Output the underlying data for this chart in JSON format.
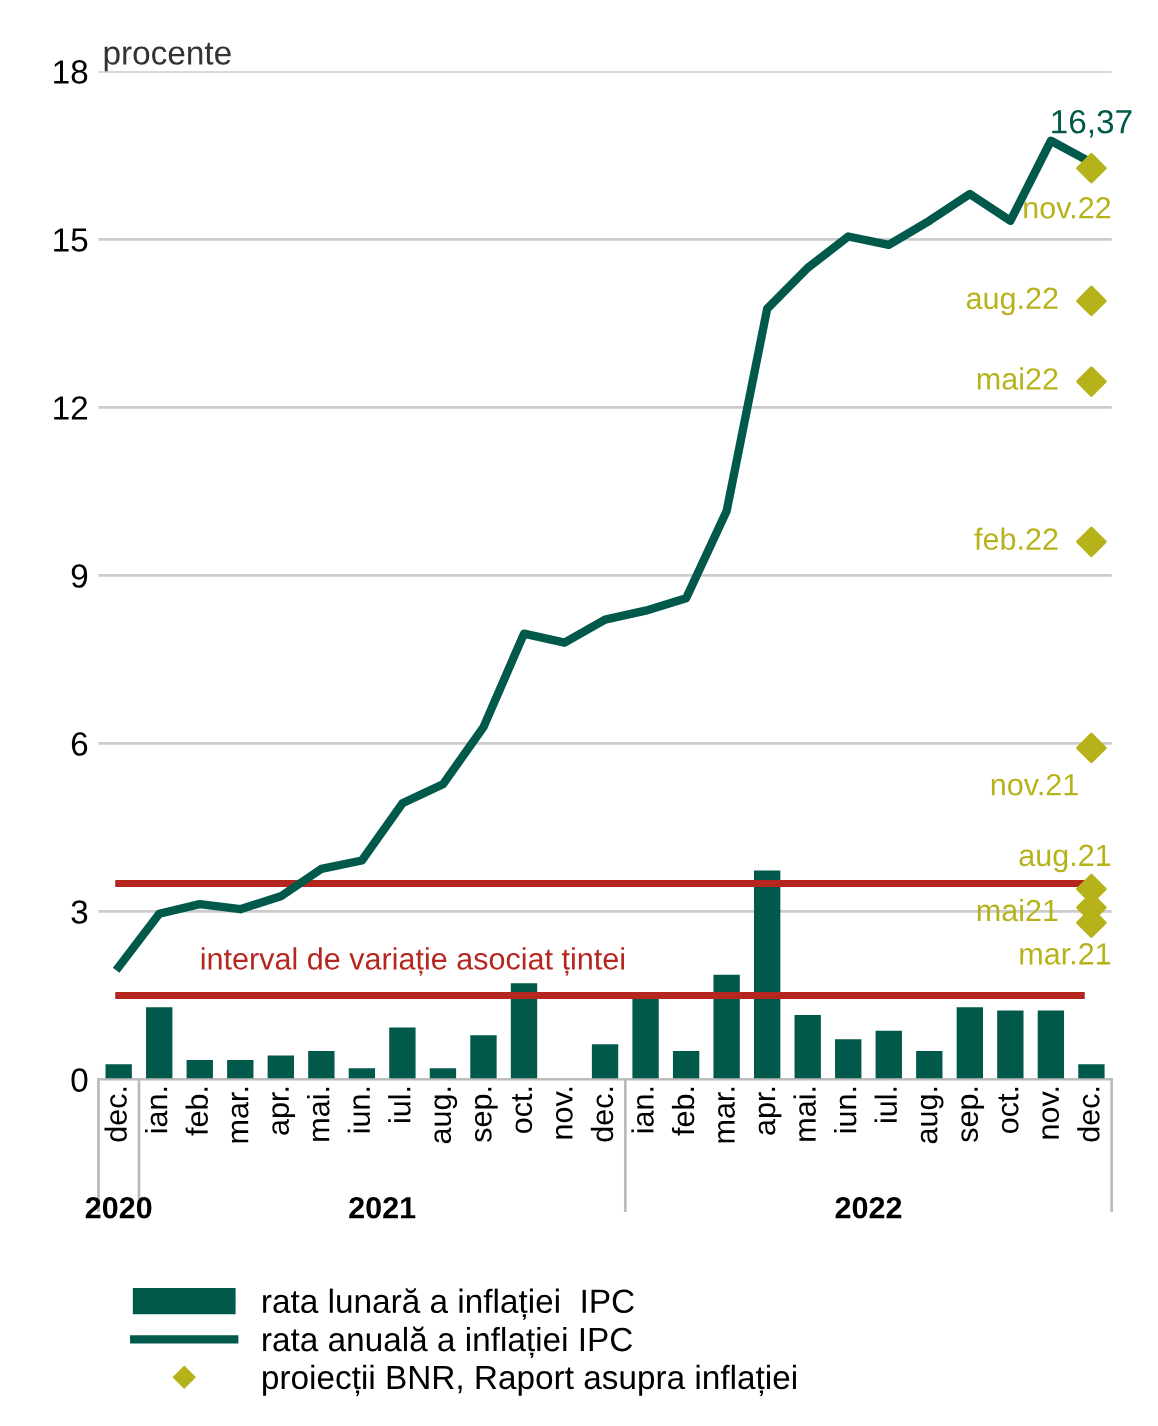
{
  "chart_data": {
    "type": "bar",
    "ylabel": "procente",
    "categories": [
      "dec.",
      "ian.",
      "feb.",
      "mar.",
      "apr.",
      "mai.",
      "iun.",
      "iul.",
      "aug.",
      "sep.",
      "oct.",
      "nov.",
      "dec.",
      "ian.",
      "feb.",
      "mar.",
      "apr.",
      "mai.",
      "iun.",
      "iul.",
      "aug.",
      "sep.",
      "oct.",
      "nov.",
      "dec."
    ],
    "ylim": [
      0,
      18
    ],
    "yticks": [
      0,
      3,
      6,
      9,
      12,
      15,
      18
    ],
    "grid": "y",
    "legend": "bottom",
    "series": [
      {
        "name": "rata lunară a inflației  IPC",
        "color": "#00594a",
        "values": [
          0.27,
          1.29,
          0.35,
          0.35,
          0.43,
          0.51,
          0.2,
          0.93,
          0.2,
          0.79,
          1.72,
          0,
          0.63,
          1.46,
          0.51,
          1.87,
          3.73,
          1.15,
          0.72,
          0.87,
          0.51,
          1.29,
          1.23,
          1.23,
          0.27
        ]
      },
      {
        "name": "rata anuală a inflației IPC",
        "type": "line",
        "color": "#00594a",
        "values": [
          2.01,
          2.96,
          3.13,
          3.04,
          3.27,
          3.76,
          3.91,
          4.93,
          5.27,
          6.29,
          7.96,
          7.8,
          8.21,
          8.37,
          8.59,
          10.15,
          13.76,
          14.49,
          15.05,
          14.9,
          15.33,
          15.81,
          15.33,
          16.76,
          16.37
        ],
        "value_labels": [
          null,
          null,
          null,
          null,
          null,
          null,
          null,
          null,
          null,
          null,
          null,
          null,
          null,
          null,
          null,
          null,
          null,
          null,
          null,
          null,
          null,
          null,
          null,
          null,
          "16,37"
        ]
      },
      {
        "name": "proiecții BNR, Raport asupra inflației",
        "type": "scatter",
        "color": "#b5b21a",
        "marker": "diamond",
        "values": [
          null,
          null,
          null,
          null,
          null,
          null,
          null,
          null,
          null,
          null,
          null,
          null,
          null,
          null,
          null,
          null,
          null,
          null,
          null,
          null,
          null,
          null,
          null,
          null,
          16.27
        ],
        "value_labels": [
          null,
          null,
          null,
          null,
          null,
          null,
          null,
          null,
          null,
          null,
          null,
          null,
          null,
          null,
          null,
          null,
          null,
          null,
          null,
          null,
          null,
          null,
          null,
          null,
          "nov.22"
        ]
      },
      {
        "type": "scatter",
        "color": "#b5b21a",
        "marker": "diamond",
        "values": [
          null,
          null,
          null,
          null,
          null,
          null,
          null,
          null,
          null,
          null,
          null,
          null,
          null,
          null,
          null,
          null,
          null,
          null,
          null,
          null,
          null,
          null,
          null,
          null,
          13.9
        ],
        "value_labels": [
          null,
          null,
          null,
          null,
          null,
          null,
          null,
          null,
          null,
          null,
          null,
          null,
          null,
          null,
          null,
          null,
          null,
          null,
          null,
          null,
          null,
          null,
          null,
          null,
          "aug.22"
        ]
      },
      {
        "type": "scatter",
        "color": "#b5b21a",
        "marker": "diamond",
        "values": [
          null,
          null,
          null,
          null,
          null,
          null,
          null,
          null,
          null,
          null,
          null,
          null,
          null,
          null,
          null,
          null,
          null,
          null,
          null,
          null,
          null,
          null,
          null,
          null,
          12.46
        ],
        "value_labels": [
          null,
          null,
          null,
          null,
          null,
          null,
          null,
          null,
          null,
          null,
          null,
          null,
          null,
          null,
          null,
          null,
          null,
          null,
          null,
          null,
          null,
          null,
          null,
          null,
          "mai22"
        ]
      },
      {
        "type": "scatter",
        "color": "#b5b21a",
        "marker": "diamond",
        "values": [
          null,
          null,
          null,
          null,
          null,
          null,
          null,
          null,
          null,
          null,
          null,
          null,
          null,
          null,
          null,
          null,
          null,
          null,
          null,
          null,
          null,
          null,
          null,
          null,
          9.6
        ],
        "value_labels": [
          null,
          null,
          null,
          null,
          null,
          null,
          null,
          null,
          null,
          null,
          null,
          null,
          null,
          null,
          null,
          null,
          null,
          null,
          null,
          null,
          null,
          null,
          null,
          null,
          "feb.22"
        ]
      },
      {
        "type": "scatter",
        "color": "#b5b21a",
        "marker": "diamond",
        "values": [
          null,
          null,
          null,
          null,
          null,
          null,
          null,
          null,
          null,
          null,
          null,
          null,
          null,
          null,
          null,
          null,
          null,
          null,
          null,
          null,
          null,
          null,
          null,
          null,
          5.92
        ],
        "value_labels": [
          null,
          null,
          null,
          null,
          null,
          null,
          null,
          null,
          null,
          null,
          null,
          null,
          null,
          null,
          null,
          null,
          null,
          null,
          null,
          null,
          null,
          null,
          null,
          null,
          "nov.21"
        ]
      },
      {
        "type": "scatter",
        "color": "#b5b21a",
        "marker": "diamond",
        "values": [
          null,
          null,
          null,
          null,
          null,
          null,
          null,
          null,
          null,
          null,
          null,
          null,
          null,
          null,
          null,
          null,
          null,
          null,
          null,
          null,
          null,
          null,
          null,
          null,
          3.4
        ],
        "value_labels": [
          null,
          null,
          null,
          null,
          null,
          null,
          null,
          null,
          null,
          null,
          null,
          null,
          null,
          null,
          null,
          null,
          null,
          null,
          null,
          null,
          null,
          null,
          null,
          null,
          "aug.21"
        ]
      },
      {
        "type": "scatter",
        "color": "#b5b21a",
        "marker": "diamond",
        "values": [
          null,
          null,
          null,
          null,
          null,
          null,
          null,
          null,
          null,
          null,
          null,
          null,
          null,
          null,
          null,
          null,
          null,
          null,
          null,
          null,
          null,
          null,
          null,
          null,
          3.07
        ],
        "value_labels": [
          null,
          null,
          null,
          null,
          null,
          null,
          null,
          null,
          null,
          null,
          null,
          null,
          null,
          null,
          null,
          null,
          null,
          null,
          null,
          null,
          null,
          null,
          null,
          null,
          "mai21"
        ]
      },
      {
        "type": "scatter",
        "color": "#b5b21a",
        "marker": "diamond",
        "values": [
          null,
          null,
          null,
          null,
          null,
          null,
          null,
          null,
          null,
          null,
          null,
          null,
          null,
          null,
          null,
          null,
          null,
          null,
          null,
          null,
          null,
          null,
          null,
          null,
          2.8
        ],
        "value_labels": [
          null,
          null,
          null,
          null,
          null,
          null,
          null,
          null,
          null,
          null,
          null,
          null,
          null,
          null,
          null,
          null,
          null,
          null,
          null,
          null,
          null,
          null,
          null,
          null,
          "mar.21"
        ]
      }
    ],
    "ref_lines": [
      {
        "axis": "y",
        "value": 3.5,
        "color": "#b5261e"
      },
      {
        "axis": "y",
        "value": 1.5,
        "label": "interval de variație asociat țintei",
        "color": "#b5261e"
      }
    ],
    "annotations": [
      "2020",
      "2021",
      "2022"
    ]
  }
}
